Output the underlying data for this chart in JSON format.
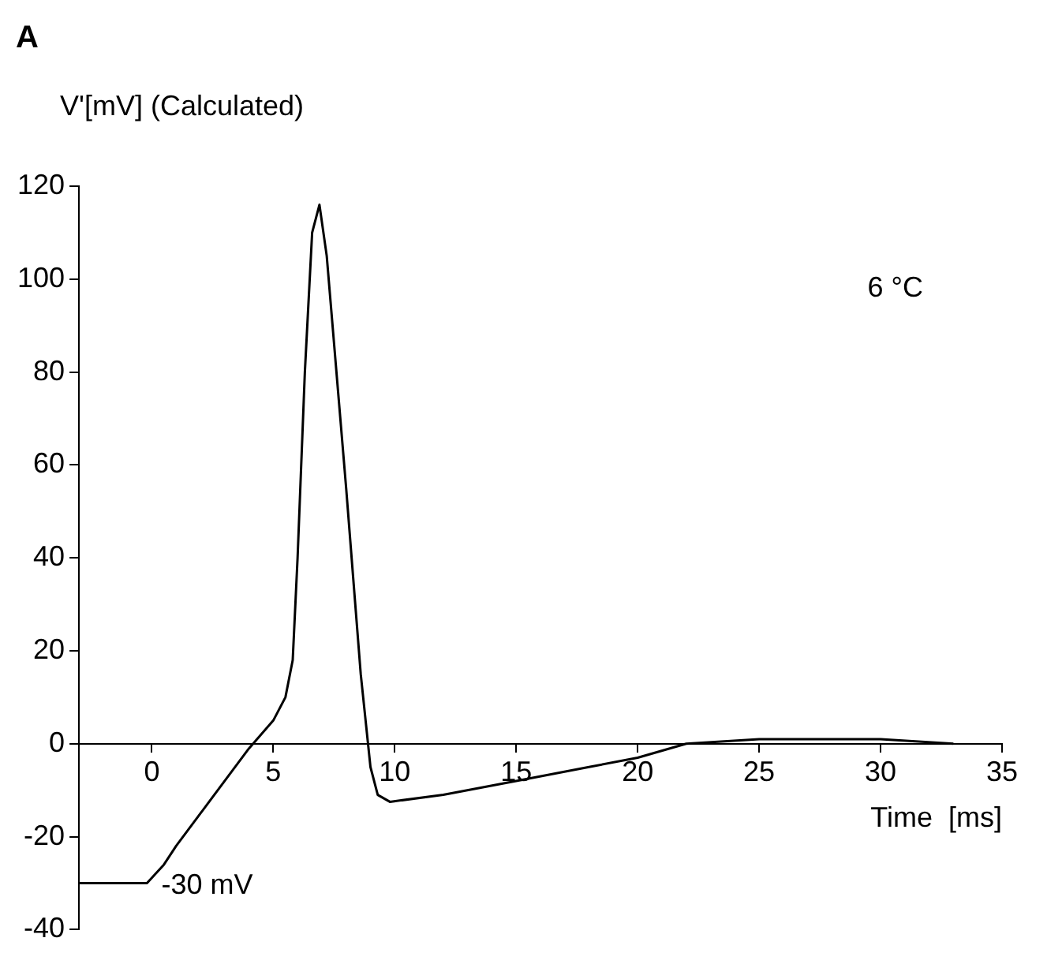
{
  "chart_data": {
    "type": "line",
    "title": "A",
    "ylabel": "V'[mV] (Calculated)",
    "xlabel": "Time  [ms]",
    "annotations": [
      "6 °C",
      {
        "text": "-30 mV",
        "x": 0,
        "y": -30
      }
    ],
    "series": [
      {
        "color": "#000000",
        "x": [
          -3,
          -0.2,
          0.5,
          1,
          2,
          3,
          4,
          5,
          5.5,
          5.8,
          6,
          6.3,
          6.6,
          6.9,
          7.2,
          8,
          8.6,
          9,
          9.3,
          9.8,
          12,
          15,
          18,
          20,
          22,
          25,
          28,
          30,
          33
        ],
        "values": [
          -30,
          -30,
          -26,
          -22,
          -15,
          -8,
          -1,
          5,
          10,
          18,
          40,
          80,
          110,
          116,
          105,
          55,
          15,
          -5,
          -11,
          -12.5,
          -11,
          -8,
          -5,
          -3,
          0,
          1,
          1,
          1,
          0
        ]
      }
    ],
    "xlim": [
      -3,
      35
    ],
    "xticks": [
      0,
      5,
      10,
      15,
      20,
      25,
      30,
      35
    ],
    "ylim": [
      -40,
      120
    ],
    "yticks": [
      -40,
      -20,
      0,
      20,
      40,
      60,
      80,
      100,
      120
    ],
    "grid": false,
    "legend": false,
    "marker": "none",
    "line_style": "solid"
  }
}
